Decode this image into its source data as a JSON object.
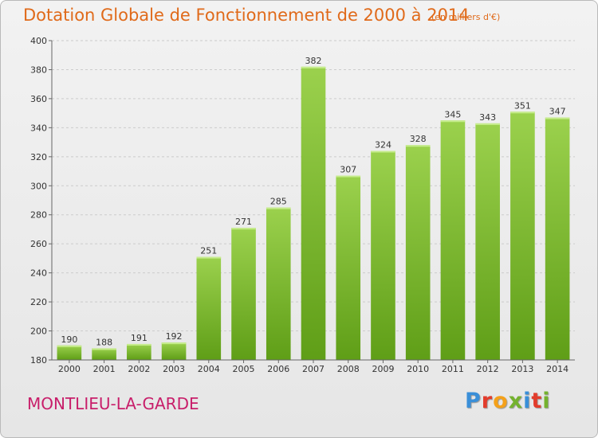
{
  "chart_data": {
    "type": "bar",
    "title": "Dotation Globale de Fonctionnement de 2000 à 2014",
    "subtitle": "(en milliers d'€)",
    "categories": [
      "2000",
      "2001",
      "2002",
      "2003",
      "2004",
      "2005",
      "2006",
      "2007",
      "2008",
      "2009",
      "2010",
      "2011",
      "2012",
      "2013",
      "2014"
    ],
    "values": [
      190,
      188,
      191,
      192,
      251,
      271,
      285,
      382,
      307,
      324,
      328,
      345,
      343,
      351,
      347
    ],
    "ylim": [
      180,
      400
    ],
    "yticks": [
      180,
      200,
      220,
      240,
      260,
      280,
      300,
      320,
      340,
      360,
      380,
      400
    ],
    "grid": true,
    "bar_color": "#7cc12e",
    "xlabel": "",
    "ylabel": ""
  },
  "place_name": "MONTLIEU-LA-GARDE",
  "brand": "Proxiti",
  "colors": {
    "title": "#e06a1a",
    "place": "#c81e6a",
    "grid": "#cccccc"
  }
}
